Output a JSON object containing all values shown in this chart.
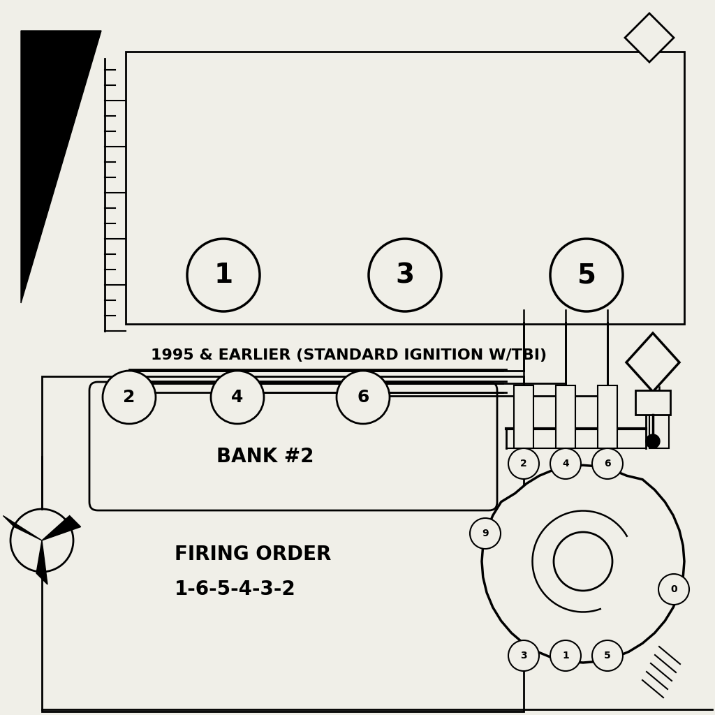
{
  "bg_color": "#f0efe8",
  "line_color": "#000000",
  "label_1995": "1995 & EARLIER (STANDARD IGNITION W/TBI)",
  "label_bank2": "BANK #2",
  "label_firing": "FIRING ORDER",
  "label_firing_order": "1-6-5-4-3-2",
  "cylinders_top": [
    "1",
    "3",
    "5"
  ],
  "cylinders_bottom_left": [
    "2",
    "4",
    "6"
  ],
  "dist_bottom": [
    "3",
    "1",
    "5"
  ],
  "dist_left": [
    "9"
  ],
  "dist_right": [
    "0"
  ]
}
